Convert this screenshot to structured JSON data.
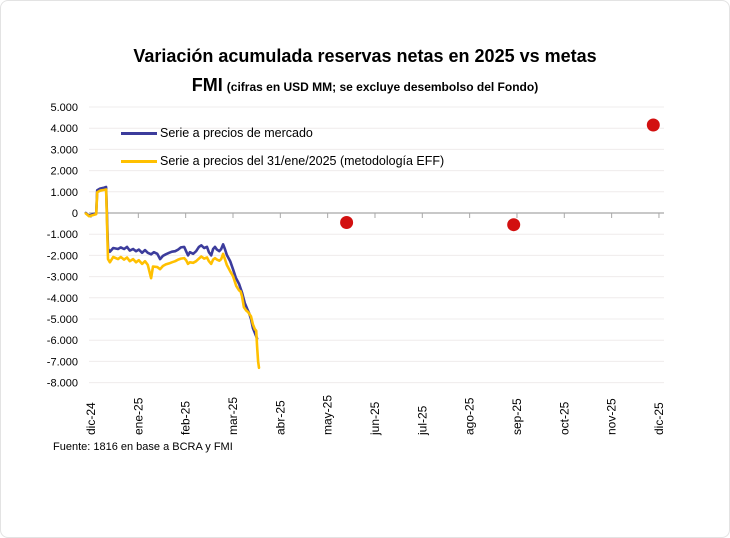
{
  "title": {
    "line1": "Variación acumulada reservas netas en 2025 vs metas",
    "line2_main": "FMI",
    "line2_sub": "(cifras en USD MM; se excluye desembolso del Fondo)"
  },
  "legend": [
    {
      "label": "Serie a precios de mercado",
      "color": "#3C3C9C"
    },
    {
      "label": "Serie a precios del 31/ene/2025 (metodología EFF)",
      "color": "#FFC000"
    }
  ],
  "source": "Fuente: 1816 en base a BCRA y FMI",
  "colors": {
    "series_mercado": "#3C3C9C",
    "series_eff": "#FFC000",
    "fmi_dot": "#D21010",
    "gridline": "#efecec",
    "axis": "#a8a8a8",
    "text": "#000000"
  },
  "chart_data": {
    "type": "line",
    "title": "Variación acumulada reservas netas en 2025 vs metas FMI (cifras en USD MM; se excluye desembolso del Fondo)",
    "ylabel": "USD MM",
    "ylim": [
      -8000,
      5000
    ],
    "grid": "horizontal, light",
    "legend_position": "top-left inside plot",
    "y_ticks": [
      {
        "value": 5000,
        "label": "5.000"
      },
      {
        "value": 4000,
        "label": "4.000"
      },
      {
        "value": 3000,
        "label": "3.000"
      },
      {
        "value": 2000,
        "label": "2.000"
      },
      {
        "value": 1000,
        "label": "1.000"
      },
      {
        "value": 0,
        "label": "0"
      },
      {
        "value": -1000,
        "label": "-1.000"
      },
      {
        "value": -2000,
        "label": "-2.000"
      },
      {
        "value": -3000,
        "label": "-3.000"
      },
      {
        "value": -4000,
        "label": "-4.000"
      },
      {
        "value": -5000,
        "label": "-5.000"
      },
      {
        "value": -6000,
        "label": "-6.000"
      },
      {
        "value": -7000,
        "label": "-7.000"
      },
      {
        "value": -8000,
        "label": "-8.000"
      }
    ],
    "x_axis": {
      "unit": "month index (0 = dic-24 tick, 12 = dic-25 tick)",
      "categories": [
        "dic-24",
        "ene-25",
        "feb-25",
        "mar-25",
        "abr-25",
        "may-25",
        "jun-25",
        "jul-25",
        "ago-25",
        "sep-25",
        "oct-25",
        "nov-25",
        "dic-25"
      ]
    },
    "series": [
      {
        "id": "mercado",
        "name": "Serie a precios de mercado",
        "color": "#3C3C9C",
        "points": [
          [
            -0.11,
            0
          ],
          [
            -0.04,
            -125
          ],
          [
            0.04,
            -50
          ],
          [
            0.11,
            -25
          ],
          [
            0.13,
            1075
          ],
          [
            0.19,
            1150
          ],
          [
            0.28,
            1200
          ],
          [
            0.32,
            1225
          ],
          [
            0.36,
            -1700
          ],
          [
            0.4,
            -1825
          ],
          [
            0.47,
            -1650
          ],
          [
            0.57,
            -1700
          ],
          [
            0.63,
            -1625
          ],
          [
            0.7,
            -1700
          ],
          [
            0.76,
            -1600
          ],
          [
            0.82,
            -1775
          ],
          [
            0.89,
            -1700
          ],
          [
            0.95,
            -1800
          ],
          [
            1.01,
            -1725
          ],
          [
            1.08,
            -1875
          ],
          [
            1.14,
            -1750
          ],
          [
            1.2,
            -1875
          ],
          [
            1.27,
            -1950
          ],
          [
            1.33,
            -1850
          ],
          [
            1.4,
            -1925
          ],
          [
            1.46,
            -2175
          ],
          [
            1.52,
            -2025
          ],
          [
            1.58,
            -1950
          ],
          [
            1.65,
            -1875
          ],
          [
            1.71,
            -1825
          ],
          [
            1.78,
            -1800
          ],
          [
            1.84,
            -1725
          ],
          [
            1.9,
            -1625
          ],
          [
            1.97,
            -1600
          ],
          [
            2.01,
            -1800
          ],
          [
            2.05,
            -2000
          ],
          [
            2.09,
            -1850
          ],
          [
            2.16,
            -1925
          ],
          [
            2.22,
            -1800
          ],
          [
            2.28,
            -1600
          ],
          [
            2.33,
            -1525
          ],
          [
            2.39,
            -1650
          ],
          [
            2.45,
            -1600
          ],
          [
            2.49,
            -1850
          ],
          [
            2.54,
            -2000
          ],
          [
            2.58,
            -1700
          ],
          [
            2.62,
            -1600
          ],
          [
            2.66,
            -1725
          ],
          [
            2.71,
            -1800
          ],
          [
            2.75,
            -1700
          ],
          [
            2.79,
            -1475
          ],
          [
            2.83,
            -1700
          ],
          [
            2.87,
            -1975
          ],
          [
            2.94,
            -2275
          ],
          [
            3.0,
            -2650
          ],
          [
            3.06,
            -3050
          ],
          [
            3.13,
            -3350
          ],
          [
            3.19,
            -3750
          ],
          [
            3.25,
            -4250
          ],
          [
            3.3,
            -4525
          ],
          [
            3.34,
            -4725
          ],
          [
            3.38,
            -5000
          ],
          [
            3.42,
            -5425
          ],
          [
            3.47,
            -5700
          ],
          [
            3.51,
            -5925
          ]
        ]
      },
      {
        "id": "eff",
        "name": "Serie a precios del 31/ene/2025 (metodología EFF)",
        "color": "#FFC000",
        "points": [
          [
            -0.11,
            -25
          ],
          [
            -0.04,
            -150
          ],
          [
            0.04,
            -100
          ],
          [
            0.11,
            -50
          ],
          [
            0.13,
            975
          ],
          [
            0.19,
            1050
          ],
          [
            0.28,
            1090
          ],
          [
            0.32,
            1110
          ],
          [
            0.36,
            -2175
          ],
          [
            0.4,
            -2325
          ],
          [
            0.47,
            -2075
          ],
          [
            0.57,
            -2175
          ],
          [
            0.63,
            -2075
          ],
          [
            0.7,
            -2200
          ],
          [
            0.76,
            -2100
          ],
          [
            0.82,
            -2275
          ],
          [
            0.89,
            -2175
          ],
          [
            0.95,
            -2325
          ],
          [
            1.01,
            -2225
          ],
          [
            1.08,
            -2400
          ],
          [
            1.14,
            -2275
          ],
          [
            1.2,
            -2450
          ],
          [
            1.27,
            -3075
          ],
          [
            1.31,
            -2525
          ],
          [
            1.4,
            -2550
          ],
          [
            1.46,
            -2650
          ],
          [
            1.52,
            -2500
          ],
          [
            1.58,
            -2425
          ],
          [
            1.65,
            -2375
          ],
          [
            1.71,
            -2325
          ],
          [
            1.78,
            -2275
          ],
          [
            1.84,
            -2200
          ],
          [
            1.9,
            -2150
          ],
          [
            1.97,
            -2125
          ],
          [
            2.01,
            -2225
          ],
          [
            2.05,
            -2400
          ],
          [
            2.09,
            -2325
          ],
          [
            2.16,
            -2350
          ],
          [
            2.22,
            -2275
          ],
          [
            2.28,
            -2150
          ],
          [
            2.33,
            -2050
          ],
          [
            2.39,
            -2150
          ],
          [
            2.45,
            -2100
          ],
          [
            2.49,
            -2275
          ],
          [
            2.54,
            -2400
          ],
          [
            2.58,
            -2200
          ],
          [
            2.62,
            -2125
          ],
          [
            2.66,
            -2200
          ],
          [
            2.71,
            -2250
          ],
          [
            2.75,
            -2175
          ],
          [
            2.79,
            -1925
          ],
          [
            2.83,
            -2175
          ],
          [
            2.87,
            -2450
          ],
          [
            2.94,
            -2750
          ],
          [
            3.0,
            -2975
          ],
          [
            3.07,
            -3450
          ],
          [
            3.13,
            -3650
          ],
          [
            3.16,
            -3700
          ],
          [
            3.19,
            -3925
          ],
          [
            3.23,
            -4450
          ],
          [
            3.28,
            -4600
          ],
          [
            3.32,
            -4675
          ],
          [
            3.38,
            -4875
          ],
          [
            3.42,
            -5250
          ],
          [
            3.46,
            -5475
          ],
          [
            3.49,
            -5550
          ],
          [
            3.51,
            -6300
          ],
          [
            3.53,
            -7000
          ],
          [
            3.55,
            -7300
          ]
        ]
      }
    ],
    "fmi_targets": {
      "color": "#D21010",
      "points": [
        [
          5.4,
          -450
        ],
        [
          8.93,
          -550
        ],
        [
          11.88,
          4150
        ]
      ]
    }
  }
}
